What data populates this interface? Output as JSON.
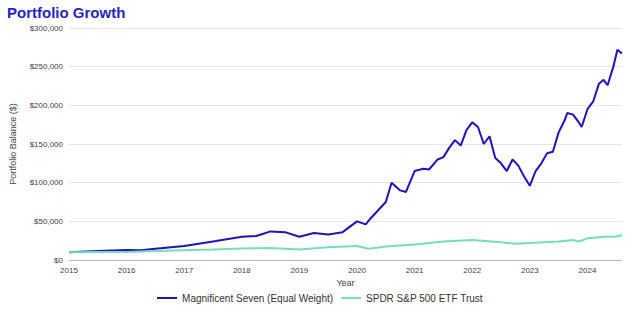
{
  "chart_data": {
    "type": "line",
    "title": "Portfolio Growth",
    "x_label": "Year",
    "y_label": "Portfolio Balance ($)",
    "xlim": [
      2015,
      2024.6
    ],
    "xticks": [
      2015,
      2016,
      2017,
      2018,
      2019,
      2020,
      2021,
      2022,
      2023,
      2024
    ],
    "ylim": [
      0,
      300000
    ],
    "yticks": [
      {
        "value": 0,
        "label": "$0"
      },
      {
        "value": 50000,
        "label": "$50,000"
      },
      {
        "value": 100000,
        "label": "$100,000"
      },
      {
        "value": 150000,
        "label": "$150,000"
      },
      {
        "value": 200000,
        "label": "$200,000"
      },
      {
        "value": 250000,
        "label": "$250,000"
      },
      {
        "value": 300000,
        "label": "$300,000"
      }
    ],
    "grid": true,
    "legend": "bottom",
    "series": [
      {
        "name": "Magnificent Seven (Equal Weight)",
        "color": "#1f14c2",
        "line_style": "solid",
        "x": [
          2015.0,
          2015.5,
          2016.0,
          2016.25,
          2016.5,
          2017.0,
          2017.5,
          2018.0,
          2018.25,
          2018.5,
          2018.75,
          2019.0,
          2019.25,
          2019.5,
          2019.75,
          2020.0,
          2020.15,
          2020.25,
          2020.5,
          2020.6,
          2020.75,
          2020.85,
          2021.0,
          2021.15,
          2021.25,
          2021.4,
          2021.5,
          2021.6,
          2021.7,
          2021.8,
          2021.9,
          2022.0,
          2022.1,
          2022.2,
          2022.3,
          2022.4,
          2022.5,
          2022.6,
          2022.7,
          2022.8,
          2022.9,
          2023.0,
          2023.1,
          2023.2,
          2023.3,
          2023.4,
          2023.5,
          2023.6,
          2023.65,
          2023.75,
          2023.85,
          2023.9,
          2024.0,
          2024.1,
          2024.2,
          2024.28,
          2024.35,
          2024.45,
          2024.52,
          2024.6
        ],
        "values": [
          10000,
          11500,
          13000,
          12500,
          14500,
          18000,
          24000,
          30000,
          31000,
          37000,
          36000,
          30000,
          35000,
          33000,
          36000,
          50000,
          46000,
          55000,
          75000,
          100000,
          90000,
          88000,
          115000,
          118000,
          117000,
          130000,
          133000,
          145000,
          155000,
          148000,
          168000,
          178000,
          172000,
          150000,
          160000,
          132000,
          125000,
          115000,
          130000,
          122000,
          108000,
          96000,
          115000,
          125000,
          138000,
          140000,
          165000,
          180000,
          190000,
          188000,
          178000,
          172000,
          195000,
          205000,
          228000,
          233000,
          226000,
          250000,
          272000,
          267000
        ]
      },
      {
        "name": "SPDR S&P 500 ETF Trust",
        "color": "#74dfbd",
        "line_style": "solid",
        "x": [
          2015.0,
          2015.5,
          2016.0,
          2016.5,
          2017.0,
          2017.5,
          2018.0,
          2018.5,
          2019.0,
          2019.5,
          2020.0,
          2020.2,
          2020.5,
          2021.0,
          2021.5,
          2022.0,
          2022.5,
          2022.75,
          2023.0,
          2023.5,
          2023.75,
          2023.85,
          2024.0,
          2024.3,
          2024.5,
          2024.6
        ],
        "values": [
          10000,
          10500,
          10500,
          11500,
          12500,
          13500,
          15000,
          15500,
          13500,
          16500,
          18000,
          14500,
          17500,
          20000,
          24000,
          26000,
          23000,
          21000,
          22000,
          24000,
          26000,
          24000,
          28000,
          30000,
          30500,
          32000
        ]
      }
    ]
  }
}
